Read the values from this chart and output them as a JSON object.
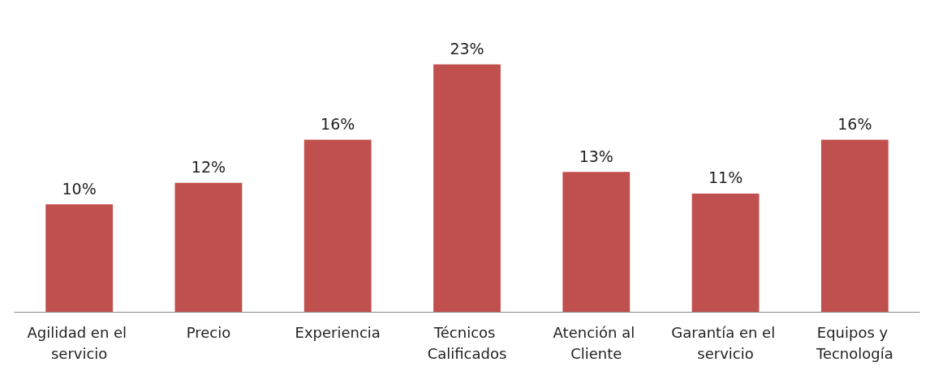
{
  "chart_data": {
    "type": "bar",
    "categories": [
      "Agilidad en el servicio",
      "Precio",
      "Experiencia",
      "Técnicos Calificados",
      "Atención al Cliente",
      "Garantía en el servicio",
      "Equipos y Tecnología"
    ],
    "values": [
      10,
      12,
      16,
      23,
      13,
      11,
      16
    ],
    "value_labels": [
      "10%",
      "12%",
      "16%",
      "23%",
      "13%",
      "11%",
      "16%"
    ],
    "color": "#c0504d"
  }
}
